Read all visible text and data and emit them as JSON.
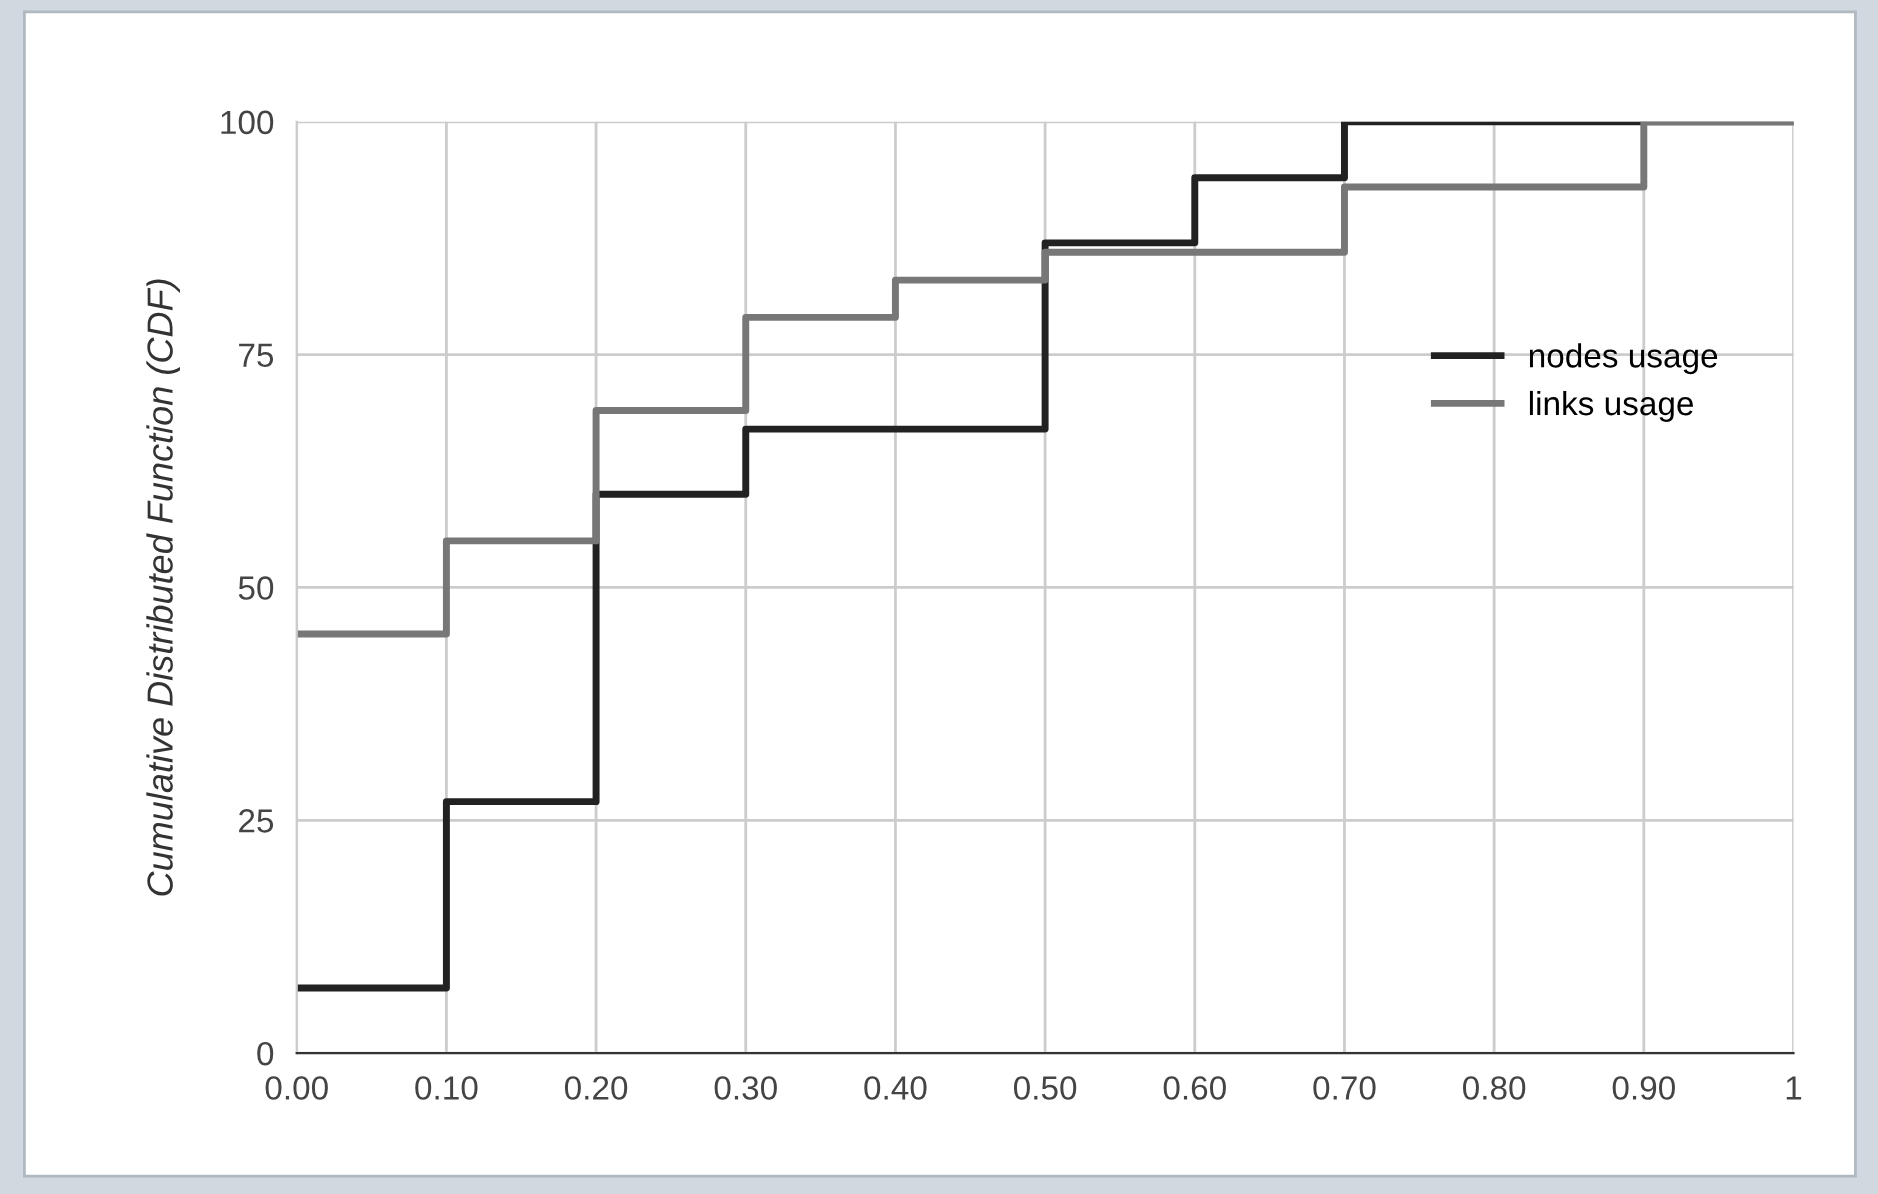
{
  "chart_data": {
    "type": "step",
    "ylabel": "Cumulative Distributed Function (CDF)",
    "x": [
      0,
      0.1,
      0.2,
      0.3,
      0.4,
      0.5,
      0.6,
      0.7,
      0.8,
      0.9,
      1
    ],
    "series": [
      {
        "name": "nodes usage",
        "color": "#222222",
        "values": [
          7,
          27,
          60,
          67,
          67,
          87,
          94,
          100,
          100,
          100,
          100
        ]
      },
      {
        "name": "links usage",
        "color": "#777777",
        "values": [
          45,
          55,
          69,
          79,
          83,
          86,
          86,
          93,
          93,
          100,
          100
        ]
      }
    ],
    "xlim": [
      0,
      1
    ],
    "xticks": [
      {
        "value": 0,
        "label": "0.00"
      },
      {
        "value": 0.1,
        "label": "0.10"
      },
      {
        "value": 0.2,
        "label": "0.20"
      },
      {
        "value": 0.3,
        "label": "0.30"
      },
      {
        "value": 0.4,
        "label": "0.40"
      },
      {
        "value": 0.5,
        "label": "0.50"
      },
      {
        "value": 0.6,
        "label": "0.60"
      },
      {
        "value": 0.7,
        "label": "0.70"
      },
      {
        "value": 0.8,
        "label": "0.80"
      },
      {
        "value": 0.9,
        "label": "0.90"
      },
      1
    ],
    "ylim": [
      0,
      100
    ],
    "yticks": [
      0,
      25,
      50,
      75,
      100
    ],
    "grid": true,
    "legend": "right",
    "line_style": "solid",
    "marker": "none"
  }
}
